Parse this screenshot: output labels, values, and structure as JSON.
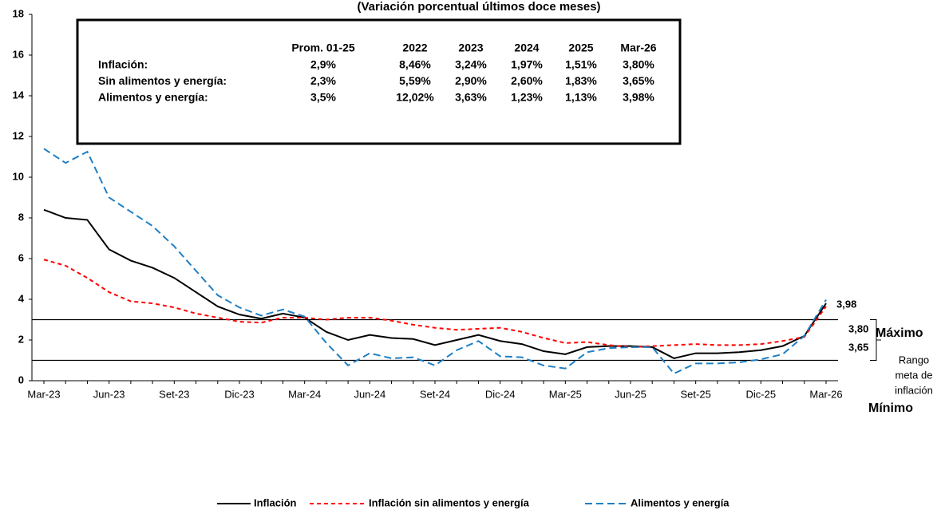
{
  "chart_data": {
    "type": "line",
    "title": "(Variación porcentual últimos doce meses)",
    "categories": [
      "Mar-23",
      null,
      null,
      "Jun-23",
      null,
      null,
      "Set-23",
      null,
      null,
      "Dic-23",
      null,
      null,
      "Mar-24",
      null,
      null,
      "Jun-24",
      null,
      null,
      "Set-24",
      null,
      null,
      "Dic-24",
      null,
      null,
      "Mar-25",
      null,
      null,
      "Jun-25",
      null,
      null,
      "Set-25",
      null,
      null,
      "Dic-25",
      null,
      null,
      "Mar-26"
    ],
    "ylim": [
      0,
      18
    ],
    "yticks": [
      0,
      2,
      4,
      6,
      8,
      10,
      12,
      14,
      16,
      18
    ],
    "target_range": [
      1,
      3
    ],
    "series": [
      {
        "name": "Inflación",
        "color": "#000000",
        "style": "solid",
        "values": [
          8.4,
          8.0,
          7.9,
          6.45,
          5.9,
          5.55,
          5.05,
          4.35,
          3.65,
          3.25,
          3.05,
          3.3,
          3.1,
          2.4,
          2.0,
          2.25,
          2.1,
          2.05,
          1.75,
          2.0,
          2.25,
          1.95,
          1.8,
          1.45,
          1.3,
          1.65,
          1.7,
          1.7,
          1.65,
          1.1,
          1.35,
          1.35,
          1.4,
          1.5,
          1.7,
          2.2,
          3.8
        ],
        "value_labels": [
          null,
          null,
          null,
          null,
          null,
          null,
          null,
          null,
          null,
          null,
          null,
          null,
          null,
          null,
          null,
          null,
          null,
          null,
          null,
          null,
          null,
          null,
          null,
          null,
          null,
          null,
          null,
          null,
          null,
          null,
          null,
          null,
          null,
          null,
          null,
          null,
          "3,80"
        ]
      },
      {
        "name": "Inflación sin alimentos y energía",
        "color": "#ff0000",
        "style": "dashed",
        "values": [
          5.95,
          5.65,
          5.05,
          4.35,
          3.9,
          3.8,
          3.6,
          3.3,
          3.1,
          2.9,
          2.85,
          3.1,
          3.1,
          3.0,
          3.1,
          3.1,
          2.95,
          2.75,
          2.6,
          2.5,
          2.55,
          2.6,
          2.4,
          2.1,
          1.85,
          1.9,
          1.75,
          1.65,
          1.7,
          1.75,
          1.8,
          1.75,
          1.75,
          1.8,
          1.95,
          2.15,
          3.65
        ],
        "value_labels": [
          null,
          null,
          null,
          null,
          null,
          null,
          null,
          null,
          null,
          null,
          null,
          null,
          null,
          null,
          null,
          null,
          null,
          null,
          null,
          null,
          null,
          null,
          null,
          null,
          null,
          null,
          null,
          null,
          null,
          null,
          null,
          null,
          null,
          null,
          null,
          null,
          "3,65"
        ]
      },
      {
        "name": "Alimentos y energía",
        "color": "#1f7fc4",
        "style": "longdash",
        "values": [
          11.4,
          10.7,
          11.25,
          9.0,
          8.3,
          7.6,
          6.6,
          5.4,
          4.2,
          3.6,
          3.2,
          3.5,
          3.15,
          1.85,
          0.75,
          1.35,
          1.1,
          1.15,
          0.75,
          1.5,
          1.95,
          1.2,
          1.15,
          0.75,
          0.6,
          1.4,
          1.6,
          1.65,
          1.65,
          0.35,
          0.85,
          0.85,
          0.9,
          1.05,
          1.3,
          2.2,
          3.98
        ],
        "value_labels": [
          null,
          null,
          null,
          null,
          null,
          null,
          null,
          null,
          null,
          null,
          null,
          null,
          null,
          null,
          null,
          null,
          null,
          null,
          null,
          null,
          null,
          null,
          null,
          null,
          null,
          null,
          null,
          null,
          null,
          null,
          null,
          null,
          null,
          null,
          null,
          null,
          "3,98"
        ]
      }
    ],
    "annotations": {
      "max": "Máximo",
      "min": "Mínimo",
      "range": [
        "Rango",
        "meta de",
        "inflación"
      ]
    },
    "summary_table": {
      "header": [
        "Prom. 01-25",
        "2022",
        "2023",
        "2024",
        "2025",
        "Mar-26"
      ],
      "rows": [
        [
          "Inflación:",
          "2,9%",
          "8,46%",
          "3,24%",
          "1,97%",
          "1,51%",
          "3,80%"
        ],
        [
          "Sin alimentos y energía:",
          "2,3%",
          "5,59%",
          "2,90%",
          "2,60%",
          "1,83%",
          "3,65%"
        ],
        [
          "Alimentos y energía:",
          "3,5%",
          "12,02%",
          "3,63%",
          "1,23%",
          "1,13%",
          "3,98%"
        ]
      ]
    }
  }
}
